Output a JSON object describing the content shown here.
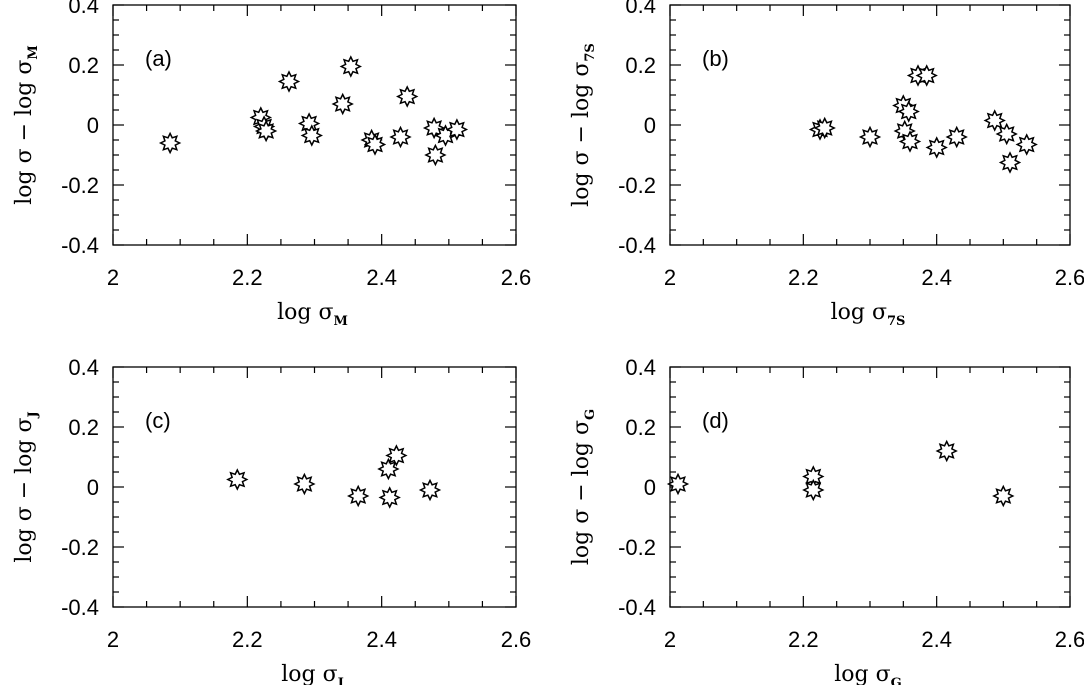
{
  "chart_data": [
    {
      "type": "scatter",
      "panel_label": "(a)",
      "xlabel": {
        "main": "log  σ",
        "sub": "M"
      },
      "ylabel": {
        "main": "log  σ −  log  σ",
        "sub": "M"
      },
      "xlim": [
        2.0,
        2.6
      ],
      "ylim": [
        -0.4,
        0.4
      ],
      "xticks": [
        "2",
        "2.2",
        "2.4",
        "2.6"
      ],
      "yticks": [
        "-0.4",
        "-0.2",
        "0",
        "0.2",
        "0.4"
      ],
      "marker": "open-star",
      "points": [
        {
          "x": 2.085,
          "y": -0.06
        },
        {
          "x": 2.22,
          "y": 0.025
        },
        {
          "x": 2.225,
          "y": -0.005
        },
        {
          "x": 2.228,
          "y": -0.02
        },
        {
          "x": 2.262,
          "y": 0.145
        },
        {
          "x": 2.292,
          "y": 0.005
        },
        {
          "x": 2.296,
          "y": -0.035
        },
        {
          "x": 2.342,
          "y": 0.07
        },
        {
          "x": 2.354,
          "y": 0.195
        },
        {
          "x": 2.385,
          "y": -0.05
        },
        {
          "x": 2.39,
          "y": -0.065
        },
        {
          "x": 2.428,
          "y": -0.04
        },
        {
          "x": 2.438,
          "y": 0.095
        },
        {
          "x": 2.478,
          "y": -0.01
        },
        {
          "x": 2.48,
          "y": -0.1
        },
        {
          "x": 2.495,
          "y": -0.035
        },
        {
          "x": 2.512,
          "y": -0.015
        }
      ]
    },
    {
      "type": "scatter",
      "panel_label": "(b)",
      "xlabel": {
        "main": "log  σ",
        "sub": "7S"
      },
      "ylabel": {
        "main": "log  σ −  log  σ",
        "sub": "7S"
      },
      "xlim": [
        2.0,
        2.6
      ],
      "ylim": [
        -0.4,
        0.4
      ],
      "xticks": [
        "2",
        "2.2",
        "2.4",
        "2.6"
      ],
      "yticks": [
        "-0.4",
        "-0.2",
        "0",
        "0.2",
        "0.4"
      ],
      "marker": "open-star",
      "points": [
        {
          "x": 2.225,
          "y": -0.015
        },
        {
          "x": 2.232,
          "y": -0.01
        },
        {
          "x": 2.3,
          "y": -0.04
        },
        {
          "x": 2.35,
          "y": 0.065
        },
        {
          "x": 2.352,
          "y": -0.02
        },
        {
          "x": 2.358,
          "y": 0.045
        },
        {
          "x": 2.36,
          "y": -0.055
        },
        {
          "x": 2.372,
          "y": 0.165
        },
        {
          "x": 2.385,
          "y": 0.165
        },
        {
          "x": 2.4,
          "y": -0.075
        },
        {
          "x": 2.43,
          "y": -0.04
        },
        {
          "x": 2.487,
          "y": 0.015
        },
        {
          "x": 2.505,
          "y": -0.03
        },
        {
          "x": 2.51,
          "y": -0.125
        },
        {
          "x": 2.535,
          "y": -0.065
        }
      ]
    },
    {
      "type": "scatter",
      "panel_label": "(c)",
      "xlabel": {
        "main": "log  σ",
        "sub": "J"
      },
      "ylabel": {
        "main": "log  σ −  log  σ",
        "sub": "J"
      },
      "xlim": [
        2.0,
        2.6
      ],
      "ylim": [
        -0.4,
        0.4
      ],
      "xticks": [
        "2",
        "2.2",
        "2.4",
        "2.6"
      ],
      "yticks": [
        "-0.4",
        "-0.2",
        "0",
        "0.2",
        "0.4"
      ],
      "marker": "open-star",
      "points": [
        {
          "x": 2.185,
          "y": 0.025
        },
        {
          "x": 2.285,
          "y": 0.01
        },
        {
          "x": 2.365,
          "y": -0.03
        },
        {
          "x": 2.41,
          "y": 0.06
        },
        {
          "x": 2.412,
          "y": -0.035
        },
        {
          "x": 2.422,
          "y": 0.105
        },
        {
          "x": 2.472,
          "y": -0.01
        }
      ]
    },
    {
      "type": "scatter",
      "panel_label": "(d)",
      "xlabel": {
        "main": "log  σ",
        "sub": "G"
      },
      "ylabel": {
        "main": "log  σ −  log  σ",
        "sub": "G"
      },
      "xlim": [
        2.0,
        2.6
      ],
      "ylim": [
        -0.4,
        0.4
      ],
      "xticks": [
        "2",
        "2.2",
        "2.4",
        "2.6"
      ],
      "yticks": [
        "-0.4",
        "-0.2",
        "0",
        "0.2",
        "0.4"
      ],
      "marker": "open-star",
      "points": [
        {
          "x": 2.012,
          "y": 0.01
        },
        {
          "x": 2.215,
          "y": 0.035
        },
        {
          "x": 2.215,
          "y": -0.01
        },
        {
          "x": 2.415,
          "y": 0.12
        },
        {
          "x": 2.5,
          "y": -0.03
        }
      ]
    }
  ]
}
